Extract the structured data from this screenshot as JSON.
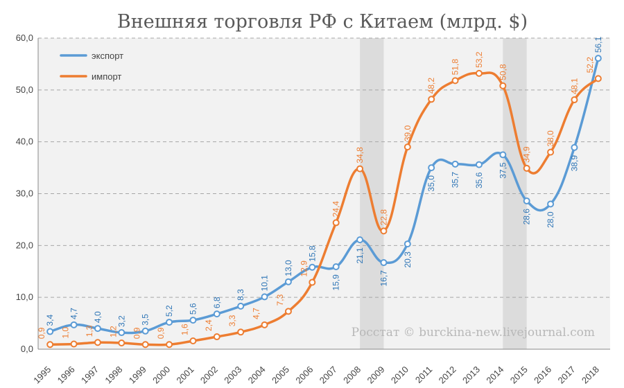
{
  "chart_data": {
    "type": "line",
    "title": "Внешняя торговля РФ с Китаем (млрд. $)",
    "categories": [
      "1995",
      "1996",
      "1997",
      "1998",
      "1999",
      "2000",
      "2001",
      "2002",
      "2003",
      "2004",
      "2005",
      "2006",
      "2007",
      "2008",
      "2009",
      "2010",
      "2011",
      "2012",
      "2013",
      "2014",
      "2015",
      "2016",
      "2017",
      "2018"
    ],
    "series": [
      {
        "name": "экспорт",
        "color": "#5b9bd5",
        "label_color": "#2e75b6",
        "values": [
          3.4,
          4.7,
          4.0,
          3.2,
          3.5,
          5.2,
          5.6,
          6.8,
          8.3,
          10.1,
          13.0,
          15.8,
          15.9,
          21.1,
          16.7,
          20.3,
          35.0,
          35.7,
          35.6,
          37.5,
          28.6,
          28.0,
          38.9,
          56.1
        ],
        "labels": [
          "3,4",
          "4,7",
          "4,0",
          "3,2",
          "3,5",
          "5,2",
          "5,6",
          "6,8",
          "8,3",
          "10,1",
          "13,0",
          "15,8",
          "15,9",
          "21,1",
          "16,7",
          "20,3",
          "35,0",
          "35,7",
          "35,6",
          "37,5",
          "28,6",
          "28,0",
          "38,9",
          "56,1"
        ]
      },
      {
        "name": "импорт",
        "color": "#ed7d31",
        "label_color": "#ed7d31",
        "values": [
          0.9,
          1.0,
          1.3,
          1.2,
          0.9,
          0.9,
          1.6,
          2.4,
          3.3,
          4.7,
          7.3,
          12.9,
          24.4,
          34.8,
          22.8,
          39.0,
          48.2,
          51.8,
          53.2,
          50.8,
          34.9,
          38.0,
          48.1,
          52.2
        ],
        "labels": [
          "0,9",
          "1,0",
          "1,3",
          "1,2",
          "0,9",
          "0,9",
          "1,6",
          "2,4",
          "3,3",
          "4,7",
          "7,3",
          "12,9",
          "24,4",
          "34,8",
          "22,8",
          "39,0",
          "48,2",
          "51,8",
          "53,2",
          "50,8",
          "34,9",
          "38,0",
          "48,1",
          "52,2"
        ]
      }
    ],
    "ylim": [
      0,
      60
    ],
    "yticks": [
      "0,0",
      "10,0",
      "20,0",
      "30,0",
      "40,0",
      "50,0",
      "60,0"
    ],
    "ytick_values": [
      0,
      10,
      20,
      30,
      40,
      50,
      60
    ],
    "shaded_ranges": [
      [
        "2008",
        "2009"
      ],
      [
        "2014",
        "2015"
      ]
    ],
    "grid": "horizontal dashed",
    "legend": "top-left",
    "source_note": "Росстат © burckina-new.livejournal.com"
  }
}
